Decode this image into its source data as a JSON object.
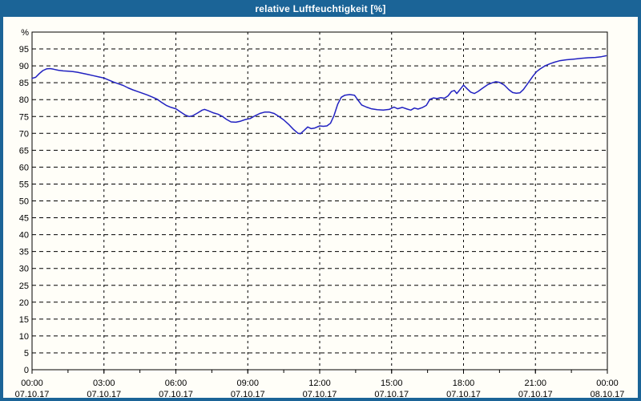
{
  "window": {
    "title": "relative Luftfeuchtigkeit [%]",
    "titlebar_color": "#1b6497",
    "background_color": "#fffef8"
  },
  "chart_data": {
    "type": "line",
    "title": "relative Luftfeuchtigkeit [%]",
    "ylabel": "%",
    "xlabel": "",
    "ylim": [
      0,
      100
    ],
    "y_ticks": [
      0,
      5,
      10,
      15,
      20,
      25,
      30,
      35,
      40,
      45,
      50,
      55,
      60,
      65,
      70,
      75,
      80,
      85,
      90,
      95
    ],
    "unit_label": "%",
    "grid": "dashed",
    "legend_position": "none",
    "xlim_hours": [
      0,
      24
    ],
    "x_minor_tick_hours": 1.5,
    "x_major_ticks": [
      {
        "hour": 0,
        "time": "00:00",
        "date": "07.10.17"
      },
      {
        "hour": 3,
        "time": "03:00",
        "date": "07.10.17"
      },
      {
        "hour": 6,
        "time": "06:00",
        "date": "07.10.17"
      },
      {
        "hour": 9,
        "time": "09:00",
        "date": "07.10.17"
      },
      {
        "hour": 12,
        "time": "12:00",
        "date": "07.10.17"
      },
      {
        "hour": 15,
        "time": "15:00",
        "date": "07.10.17"
      },
      {
        "hour": 18,
        "time": "18:00",
        "date": "07.10.17"
      },
      {
        "hour": 21,
        "time": "21:00",
        "date": "07.10.17"
      },
      {
        "hour": 24,
        "time": "00:00",
        "date": "08.10.17"
      }
    ],
    "line_color": "#2121c1",
    "grid_color": "#000000",
    "axis_color": "#000000",
    "text_color": "#000000",
    "series": [
      {
        "name": "relative Luftfeuchtigkeit [%]",
        "points": [
          [
            0.0,
            86.3
          ],
          [
            0.15,
            86.6
          ],
          [
            0.3,
            87.7
          ],
          [
            0.45,
            88.6
          ],
          [
            0.6,
            89.1
          ],
          [
            0.75,
            89.2
          ],
          [
            0.9,
            89.0
          ],
          [
            1.1,
            88.7
          ],
          [
            1.3,
            88.5
          ],
          [
            1.5,
            88.4
          ],
          [
            1.7,
            88.3
          ],
          [
            1.9,
            88.1
          ],
          [
            2.1,
            87.8
          ],
          [
            2.3,
            87.5
          ],
          [
            2.55,
            87.1
          ],
          [
            2.8,
            86.7
          ],
          [
            3.0,
            86.4
          ],
          [
            3.2,
            85.8
          ],
          [
            3.4,
            85.2
          ],
          [
            3.6,
            84.7
          ],
          [
            3.8,
            84.2
          ],
          [
            4.0,
            83.5
          ],
          [
            4.2,
            82.9
          ],
          [
            4.4,
            82.4
          ],
          [
            4.6,
            81.9
          ],
          [
            4.8,
            81.4
          ],
          [
            5.0,
            80.8
          ],
          [
            5.2,
            80.2
          ],
          [
            5.4,
            79.2
          ],
          [
            5.6,
            78.3
          ],
          [
            5.8,
            77.7
          ],
          [
            6.0,
            77.3
          ],
          [
            6.2,
            76.3
          ],
          [
            6.4,
            75.4
          ],
          [
            6.55,
            75.0
          ],
          [
            6.7,
            75.2
          ],
          [
            6.9,
            76.0
          ],
          [
            7.1,
            76.9
          ],
          [
            7.2,
            77.1
          ],
          [
            7.35,
            76.7
          ],
          [
            7.55,
            76.1
          ],
          [
            7.75,
            75.7
          ],
          [
            7.95,
            75.0
          ],
          [
            8.1,
            74.2
          ],
          [
            8.3,
            73.4
          ],
          [
            8.5,
            73.3
          ],
          [
            8.7,
            73.6
          ],
          [
            8.9,
            74.1
          ],
          [
            9.1,
            74.4
          ],
          [
            9.3,
            75.2
          ],
          [
            9.5,
            75.9
          ],
          [
            9.7,
            76.3
          ],
          [
            9.9,
            76.3
          ],
          [
            10.1,
            75.9
          ],
          [
            10.3,
            75.0
          ],
          [
            10.5,
            74.0
          ],
          [
            10.7,
            72.7
          ],
          [
            10.9,
            71.2
          ],
          [
            11.1,
            70.0
          ],
          [
            11.2,
            69.9
          ],
          [
            11.35,
            70.9
          ],
          [
            11.5,
            71.9
          ],
          [
            11.65,
            71.4
          ],
          [
            11.8,
            71.6
          ],
          [
            12.0,
            72.2
          ],
          [
            12.15,
            72.1
          ],
          [
            12.3,
            72.2
          ],
          [
            12.45,
            73.0
          ],
          [
            12.6,
            75.3
          ],
          [
            12.75,
            78.6
          ],
          [
            12.9,
            80.7
          ],
          [
            13.05,
            81.3
          ],
          [
            13.25,
            81.5
          ],
          [
            13.45,
            81.3
          ],
          [
            13.6,
            79.8
          ],
          [
            13.75,
            78.4
          ],
          [
            13.95,
            77.8
          ],
          [
            14.15,
            77.3
          ],
          [
            14.4,
            77.0
          ],
          [
            14.65,
            76.9
          ],
          [
            14.9,
            77.1
          ],
          [
            15.1,
            77.8
          ],
          [
            15.25,
            77.3
          ],
          [
            15.45,
            77.7
          ],
          [
            15.65,
            77.2
          ],
          [
            15.8,
            76.9
          ],
          [
            15.95,
            77.5
          ],
          [
            16.1,
            77.2
          ],
          [
            16.3,
            77.7
          ],
          [
            16.45,
            78.3
          ],
          [
            16.6,
            80.1
          ],
          [
            16.75,
            80.5
          ],
          [
            16.9,
            80.3
          ],
          [
            17.05,
            80.6
          ],
          [
            17.2,
            80.4
          ],
          [
            17.35,
            81.1
          ],
          [
            17.5,
            82.4
          ],
          [
            17.62,
            82.7
          ],
          [
            17.72,
            81.8
          ],
          [
            17.88,
            83.2
          ],
          [
            18.0,
            84.3
          ],
          [
            18.15,
            83.2
          ],
          [
            18.3,
            82.2
          ],
          [
            18.45,
            81.8
          ],
          [
            18.6,
            82.4
          ],
          [
            18.8,
            83.4
          ],
          [
            19.0,
            84.4
          ],
          [
            19.2,
            85.0
          ],
          [
            19.35,
            85.3
          ],
          [
            19.5,
            85.1
          ],
          [
            19.7,
            84.3
          ],
          [
            19.9,
            82.9
          ],
          [
            20.05,
            82.1
          ],
          [
            20.2,
            81.9
          ],
          [
            20.35,
            82.0
          ],
          [
            20.5,
            83.0
          ],
          [
            20.7,
            85.0
          ],
          [
            20.9,
            87.0
          ],
          [
            21.05,
            88.3
          ],
          [
            21.2,
            89.1
          ],
          [
            21.4,
            90.0
          ],
          [
            21.6,
            90.6
          ],
          [
            21.8,
            91.1
          ],
          [
            22.0,
            91.5
          ],
          [
            22.3,
            91.8
          ],
          [
            22.6,
            92.0
          ],
          [
            22.9,
            92.2
          ],
          [
            23.2,
            92.4
          ],
          [
            23.5,
            92.5
          ],
          [
            23.75,
            92.7
          ],
          [
            23.95,
            93.0
          ]
        ]
      }
    ]
  }
}
